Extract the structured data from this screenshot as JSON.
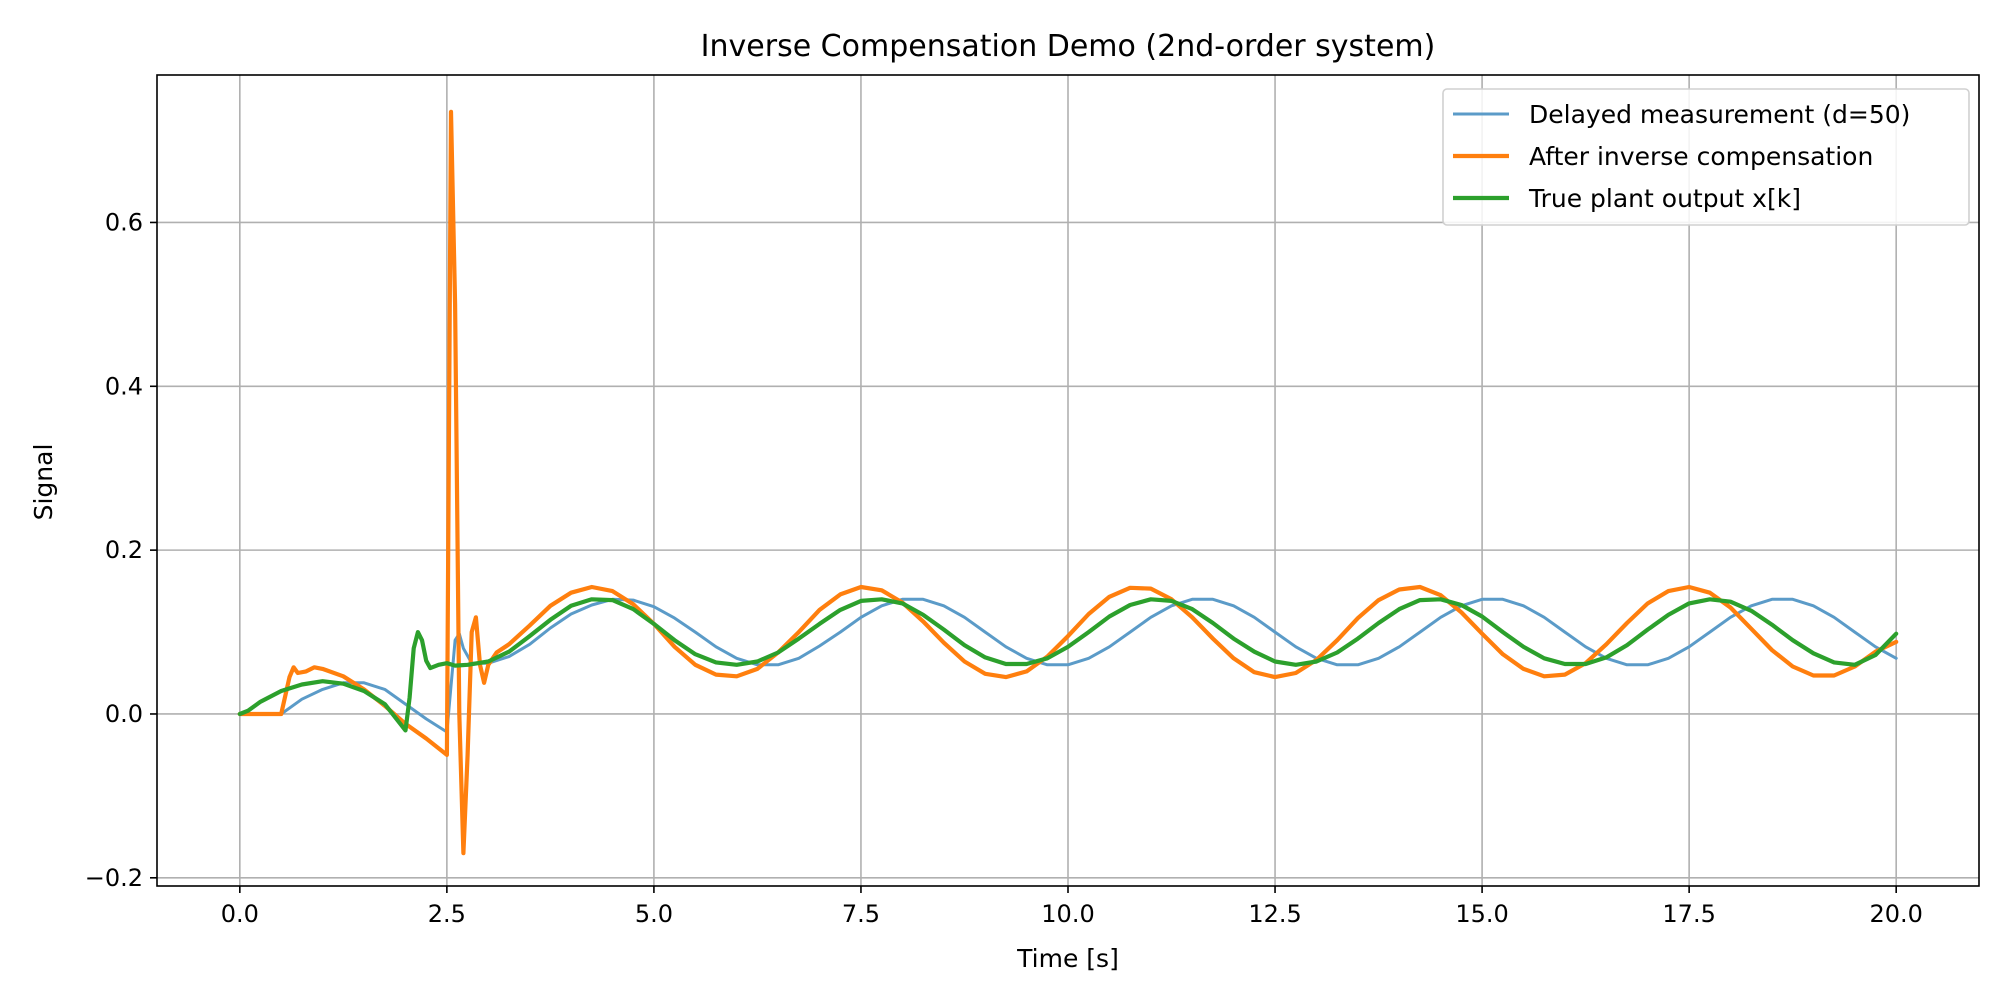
{
  "chart_data": {
    "type": "line",
    "title": "Inverse Compensation Demo (2nd-order system)",
    "xlabel": "Time [s]",
    "ylabel": "Signal",
    "xlim": [
      -1.0,
      21.0
    ],
    "ylim": [
      -0.21,
      0.78
    ],
    "xticks": [
      0.0,
      2.5,
      5.0,
      7.5,
      10.0,
      12.5,
      15.0,
      17.5,
      20.0
    ],
    "xtick_labels": [
      "0.0",
      "2.5",
      "5.0",
      "7.5",
      "10.0",
      "12.5",
      "15.0",
      "17.5",
      "20.0"
    ],
    "yticks": [
      -0.2,
      0.0,
      0.2,
      0.4,
      0.6
    ],
    "ytick_labels": [
      "−0.2",
      "0.0",
      "0.2",
      "0.4",
      "0.6"
    ],
    "grid": true,
    "legend_position": "top-right",
    "series": [
      {
        "name": "Delayed measurement (d=50)",
        "color": "#5b9bc8",
        "points": [
          [
            0.0,
            0.0
          ],
          [
            0.5,
            0.0
          ],
          [
            0.75,
            0.018
          ],
          [
            1.0,
            0.03
          ],
          [
            1.25,
            0.038
          ],
          [
            1.5,
            0.038
          ],
          [
            1.75,
            0.03
          ],
          [
            2.0,
            0.012
          ],
          [
            2.25,
            -0.006
          ],
          [
            2.5,
            -0.022
          ],
          [
            2.6,
            0.09
          ],
          [
            2.65,
            0.098
          ],
          [
            2.7,
            0.08
          ],
          [
            2.8,
            0.062
          ],
          [
            3.0,
            0.062
          ],
          [
            3.25,
            0.07
          ],
          [
            3.5,
            0.085
          ],
          [
            3.75,
            0.105
          ],
          [
            4.0,
            0.122
          ],
          [
            4.25,
            0.133
          ],
          [
            4.5,
            0.14
          ],
          [
            4.75,
            0.139
          ],
          [
            5.0,
            0.131
          ],
          [
            5.25,
            0.117
          ],
          [
            5.5,
            0.1
          ],
          [
            5.75,
            0.082
          ],
          [
            6.0,
            0.068
          ],
          [
            6.25,
            0.06
          ],
          [
            6.5,
            0.06
          ],
          [
            6.75,
            0.068
          ],
          [
            7.0,
            0.083
          ],
          [
            7.25,
            0.1
          ],
          [
            7.5,
            0.118
          ],
          [
            7.75,
            0.132
          ],
          [
            8.0,
            0.14
          ],
          [
            8.25,
            0.14
          ],
          [
            8.5,
            0.132
          ],
          [
            8.75,
            0.118
          ],
          [
            9.0,
            0.1
          ],
          [
            9.25,
            0.082
          ],
          [
            9.5,
            0.068
          ],
          [
            9.75,
            0.06
          ],
          [
            10.0,
            0.06
          ],
          [
            10.25,
            0.068
          ],
          [
            10.5,
            0.082
          ],
          [
            10.75,
            0.1
          ],
          [
            11.0,
            0.118
          ],
          [
            11.25,
            0.132
          ],
          [
            11.5,
            0.14
          ],
          [
            11.75,
            0.14
          ],
          [
            12.0,
            0.132
          ],
          [
            12.25,
            0.118
          ],
          [
            12.5,
            0.1
          ],
          [
            12.75,
            0.082
          ],
          [
            13.0,
            0.068
          ],
          [
            13.25,
            0.06
          ],
          [
            13.5,
            0.06
          ],
          [
            13.75,
            0.068
          ],
          [
            14.0,
            0.082
          ],
          [
            14.25,
            0.1
          ],
          [
            14.5,
            0.118
          ],
          [
            14.75,
            0.132
          ],
          [
            15.0,
            0.14
          ],
          [
            15.25,
            0.14
          ],
          [
            15.5,
            0.132
          ],
          [
            15.75,
            0.118
          ],
          [
            16.0,
            0.1
          ],
          [
            16.25,
            0.082
          ],
          [
            16.5,
            0.068
          ],
          [
            16.75,
            0.06
          ],
          [
            17.0,
            0.06
          ],
          [
            17.25,
            0.068
          ],
          [
            17.5,
            0.082
          ],
          [
            17.75,
            0.1
          ],
          [
            18.0,
            0.118
          ],
          [
            18.25,
            0.132
          ],
          [
            18.5,
            0.14
          ],
          [
            18.75,
            0.14
          ],
          [
            19.0,
            0.132
          ],
          [
            19.25,
            0.118
          ],
          [
            19.5,
            0.1
          ],
          [
            19.75,
            0.082
          ],
          [
            20.0,
            0.068
          ]
        ]
      },
      {
        "name": "After inverse compensation",
        "color": "#ff7f0e",
        "points": [
          [
            0.0,
            0.0
          ],
          [
            0.5,
            0.0
          ],
          [
            0.6,
            0.045
          ],
          [
            0.65,
            0.057
          ],
          [
            0.7,
            0.05
          ],
          [
            0.8,
            0.052
          ],
          [
            0.9,
            0.057
          ],
          [
            1.0,
            0.055
          ],
          [
            1.25,
            0.046
          ],
          [
            1.5,
            0.03
          ],
          [
            1.75,
            0.01
          ],
          [
            2.0,
            -0.012
          ],
          [
            2.25,
            -0.03
          ],
          [
            2.5,
            -0.05
          ],
          [
            2.55,
            0.735
          ],
          [
            2.6,
            0.5
          ],
          [
            2.65,
            0.0
          ],
          [
            2.7,
            -0.17
          ],
          [
            2.75,
            -0.05
          ],
          [
            2.8,
            0.1
          ],
          [
            2.85,
            0.118
          ],
          [
            2.9,
            0.06
          ],
          [
            2.95,
            0.038
          ],
          [
            3.0,
            0.06
          ],
          [
            3.1,
            0.075
          ],
          [
            3.25,
            0.085
          ],
          [
            3.5,
            0.108
          ],
          [
            3.75,
            0.132
          ],
          [
            4.0,
            0.148
          ],
          [
            4.25,
            0.155
          ],
          [
            4.5,
            0.15
          ],
          [
            4.75,
            0.134
          ],
          [
            5.0,
            0.11
          ],
          [
            5.25,
            0.082
          ],
          [
            5.5,
            0.06
          ],
          [
            5.75,
            0.048
          ],
          [
            6.0,
            0.046
          ],
          [
            6.25,
            0.055
          ],
          [
            6.5,
            0.075
          ],
          [
            6.75,
            0.1
          ],
          [
            7.0,
            0.127
          ],
          [
            7.25,
            0.146
          ],
          [
            7.5,
            0.155
          ],
          [
            7.75,
            0.151
          ],
          [
            8.0,
            0.136
          ],
          [
            8.25,
            0.113
          ],
          [
            8.5,
            0.087
          ],
          [
            8.75,
            0.064
          ],
          [
            9.0,
            0.049
          ],
          [
            9.25,
            0.045
          ],
          [
            9.5,
            0.052
          ],
          [
            9.75,
            0.07
          ],
          [
            10.0,
            0.095
          ],
          [
            10.25,
            0.122
          ],
          [
            10.5,
            0.143
          ],
          [
            10.75,
            0.154
          ],
          [
            11.0,
            0.153
          ],
          [
            11.25,
            0.14
          ],
          [
            11.5,
            0.118
          ],
          [
            11.75,
            0.092
          ],
          [
            12.0,
            0.068
          ],
          [
            12.25,
            0.051
          ],
          [
            12.5,
            0.045
          ],
          [
            12.75,
            0.05
          ],
          [
            13.0,
            0.066
          ],
          [
            13.25,
            0.09
          ],
          [
            13.5,
            0.117
          ],
          [
            13.75,
            0.139
          ],
          [
            14.0,
            0.152
          ],
          [
            14.25,
            0.155
          ],
          [
            14.5,
            0.145
          ],
          [
            14.75,
            0.124
          ],
          [
            15.0,
            0.098
          ],
          [
            15.25,
            0.073
          ],
          [
            15.5,
            0.055
          ],
          [
            15.75,
            0.046
          ],
          [
            16.0,
            0.048
          ],
          [
            16.25,
            0.062
          ],
          [
            16.5,
            0.085
          ],
          [
            16.75,
            0.111
          ],
          [
            17.0,
            0.135
          ],
          [
            17.25,
            0.15
          ],
          [
            17.5,
            0.155
          ],
          [
            17.75,
            0.148
          ],
          [
            18.0,
            0.13
          ],
          [
            18.25,
            0.104
          ],
          [
            18.5,
            0.078
          ],
          [
            18.75,
            0.058
          ],
          [
            19.0,
            0.047
          ],
          [
            19.25,
            0.047
          ],
          [
            19.5,
            0.058
          ],
          [
            19.75,
            0.076
          ],
          [
            20.0,
            0.088
          ]
        ]
      },
      {
        "name": "True plant output x[k]",
        "color": "#2ca02c",
        "points": [
          [
            0.0,
            0.0
          ],
          [
            0.1,
            0.004
          ],
          [
            0.25,
            0.015
          ],
          [
            0.5,
            0.028
          ],
          [
            0.75,
            0.036
          ],
          [
            1.0,
            0.04
          ],
          [
            1.25,
            0.037
          ],
          [
            1.5,
            0.028
          ],
          [
            1.75,
            0.012
          ],
          [
            2.0,
            -0.02
          ],
          [
            2.05,
            0.02
          ],
          [
            2.1,
            0.08
          ],
          [
            2.15,
            0.1
          ],
          [
            2.2,
            0.09
          ],
          [
            2.25,
            0.065
          ],
          [
            2.3,
            0.056
          ],
          [
            2.4,
            0.06
          ],
          [
            2.5,
            0.062
          ],
          [
            2.6,
            0.059
          ],
          [
            2.75,
            0.06
          ],
          [
            3.0,
            0.064
          ],
          [
            3.25,
            0.076
          ],
          [
            3.5,
            0.095
          ],
          [
            3.75,
            0.115
          ],
          [
            4.0,
            0.132
          ],
          [
            4.25,
            0.14
          ],
          [
            4.5,
            0.139
          ],
          [
            4.75,
            0.128
          ],
          [
            5.0,
            0.11
          ],
          [
            5.25,
            0.09
          ],
          [
            5.5,
            0.073
          ],
          [
            5.75,
            0.063
          ],
          [
            6.0,
            0.06
          ],
          [
            6.25,
            0.064
          ],
          [
            6.5,
            0.075
          ],
          [
            6.75,
            0.092
          ],
          [
            7.0,
            0.11
          ],
          [
            7.25,
            0.127
          ],
          [
            7.5,
            0.138
          ],
          [
            7.75,
            0.14
          ],
          [
            8.0,
            0.135
          ],
          [
            8.25,
            0.121
          ],
          [
            8.5,
            0.103
          ],
          [
            8.75,
            0.084
          ],
          [
            9.0,
            0.069
          ],
          [
            9.25,
            0.061
          ],
          [
            9.5,
            0.061
          ],
          [
            9.75,
            0.068
          ],
          [
            10.0,
            0.082
          ],
          [
            10.25,
            0.1
          ],
          [
            10.5,
            0.119
          ],
          [
            10.75,
            0.133
          ],
          [
            11.0,
            0.14
          ],
          [
            11.25,
            0.138
          ],
          [
            11.5,
            0.128
          ],
          [
            11.75,
            0.111
          ],
          [
            12.0,
            0.092
          ],
          [
            12.25,
            0.076
          ],
          [
            12.5,
            0.064
          ],
          [
            12.75,
            0.06
          ],
          [
            13.0,
            0.064
          ],
          [
            13.25,
            0.075
          ],
          [
            13.5,
            0.092
          ],
          [
            13.75,
            0.111
          ],
          [
            14.0,
            0.128
          ],
          [
            14.25,
            0.139
          ],
          [
            14.5,
            0.14
          ],
          [
            14.75,
            0.133
          ],
          [
            15.0,
            0.119
          ],
          [
            15.25,
            0.1
          ],
          [
            15.5,
            0.082
          ],
          [
            15.75,
            0.068
          ],
          [
            16.0,
            0.061
          ],
          [
            16.25,
            0.061
          ],
          [
            16.5,
            0.069
          ],
          [
            16.75,
            0.084
          ],
          [
            17.0,
            0.103
          ],
          [
            17.25,
            0.121
          ],
          [
            17.5,
            0.135
          ],
          [
            17.75,
            0.14
          ],
          [
            18.0,
            0.137
          ],
          [
            18.25,
            0.126
          ],
          [
            18.5,
            0.109
          ],
          [
            18.75,
            0.09
          ],
          [
            19.0,
            0.074
          ],
          [
            19.25,
            0.063
          ],
          [
            19.5,
            0.06
          ],
          [
            19.75,
            0.072
          ],
          [
            20.0,
            0.098
          ]
        ]
      }
    ]
  }
}
